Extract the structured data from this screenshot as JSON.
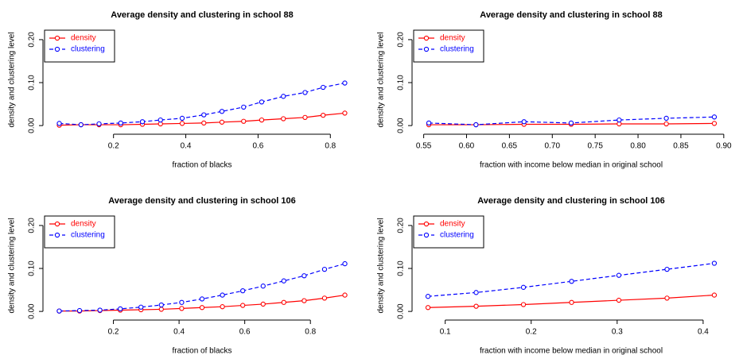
{
  "chart_data": [
    {
      "type": "line",
      "title": "Average density and clustering in school 88",
      "x_label": "fraction of blacks",
      "y_label": "density and clustering level",
      "x": [
        0.05,
        0.11,
        0.16,
        0.22,
        0.28,
        0.33,
        0.39,
        0.45,
        0.5,
        0.56,
        0.61,
        0.67,
        0.73,
        0.78,
        0.84
      ],
      "series": [
        {
          "name": "density",
          "color": "#ff0000",
          "linestyle": "solid",
          "values": [
            0.001,
            0.002,
            0.002,
            0.002,
            0.003,
            0.004,
            0.005,
            0.006,
            0.008,
            0.01,
            0.013,
            0.016,
            0.019,
            0.024,
            0.029
          ]
        },
        {
          "name": "clustering",
          "color": "#0000ff",
          "linestyle": "dashed",
          "values": [
            0.005,
            0.002,
            0.004,
            0.006,
            0.009,
            0.013,
            0.017,
            0.025,
            0.033,
            0.043,
            0.055,
            0.068,
            0.077,
            0.089,
            0.099
          ]
        }
      ],
      "xlim": [
        0.018,
        0.872
      ],
      "xticks": [
        0.2,
        0.4,
        0.6,
        0.8
      ],
      "ylim": [
        -0.009,
        0.222
      ],
      "yticks": [
        {
          "value": 0,
          "label": "0.00"
        },
        {
          "value": 0.1,
          "label": "0.10"
        },
        {
          "value": 0.2,
          "label": "0.20"
        }
      ],
      "legend": "topleft"
    },
    {
      "type": "line",
      "title": "Average density and clustering in school 88",
      "x_label": "fraction with income below median in original school",
      "y_label": "density and clustering level",
      "x": [
        0.556,
        0.611,
        0.667,
        0.722,
        0.778,
        0.833,
        0.889
      ],
      "series": [
        {
          "name": "density",
          "color": "#ff0000",
          "linestyle": "solid",
          "values": [
            0.002,
            0.002,
            0.003,
            0.003,
            0.004,
            0.004,
            0.005
          ]
        },
        {
          "name": "clustering",
          "color": "#0000ff",
          "linestyle": "dashed",
          "values": [
            0.006,
            0.002,
            0.009,
            0.006,
            0.013,
            0.017,
            0.02
          ]
        }
      ],
      "xlim": [
        0.542,
        0.902
      ],
      "xticks": [
        0.55,
        {
          "value": 0.6,
          "label": "0.60"
        },
        0.65,
        {
          "value": 0.7,
          "label": "0.70"
        },
        0.75,
        {
          "value": 0.8,
          "label": "0.80"
        },
        0.85,
        {
          "value": 0.9,
          "label": "0.90"
        }
      ],
      "ylim": [
        -0.009,
        0.222
      ],
      "yticks": [
        {
          "value": 0,
          "label": "0.00"
        },
        {
          "value": 0.1,
          "label": "0.10"
        },
        {
          "value": 0.2,
          "label": "0.20"
        }
      ],
      "legend": "topleft"
    },
    {
      "type": "line",
      "title": "Average density and clustering in school 106",
      "x_label": "fraction of blacks",
      "y_label": "density and clustering level",
      "x": [
        0.035,
        0.097,
        0.159,
        0.221,
        0.284,
        0.346,
        0.408,
        0.47,
        0.532,
        0.594,
        0.656,
        0.719,
        0.781,
        0.843,
        0.905
      ],
      "series": [
        {
          "name": "density",
          "color": "#ff0000",
          "linestyle": "solid",
          "values": [
            0.001,
            0.001,
            0.002,
            0.003,
            0.004,
            0.005,
            0.007,
            0.009,
            0.011,
            0.014,
            0.017,
            0.021,
            0.025,
            0.031,
            0.038
          ]
        },
        {
          "name": "clustering",
          "color": "#0000ff",
          "linestyle": "dashed",
          "values": [
            0.001,
            0.002,
            0.003,
            0.006,
            0.01,
            0.015,
            0.021,
            0.029,
            0.038,
            0.048,
            0.059,
            0.071,
            0.083,
            0.098,
            0.111
          ]
        }
      ],
      "xlim": [
        0.0,
        0.94
      ],
      "xticks": [
        0.2,
        0.4,
        0.6,
        0.8
      ],
      "ylim": [
        -0.009,
        0.222
      ],
      "yticks": [
        {
          "value": 0,
          "label": "0.00"
        },
        {
          "value": 0.1,
          "label": "0.10"
        },
        {
          "value": 0.2,
          "label": "0.20"
        }
      ],
      "legend": "topleft"
    },
    {
      "type": "line",
      "title": "Average density and clustering in school 106",
      "x_label": "fraction with income below median in original school",
      "y_label": "density and clustering level",
      "x": [
        0.08,
        0.136,
        0.191,
        0.247,
        0.302,
        0.358,
        0.413
      ],
      "series": [
        {
          "name": "density",
          "color": "#ff0000",
          "linestyle": "solid",
          "values": [
            0.009,
            0.012,
            0.016,
            0.021,
            0.026,
            0.031,
            0.038
          ]
        },
        {
          "name": "clustering",
          "color": "#0000ff",
          "linestyle": "dashed",
          "values": [
            0.035,
            0.044,
            0.056,
            0.07,
            0.084,
            0.098,
            0.112
          ]
        }
      ],
      "xlim": [
        0.067,
        0.426
      ],
      "xticks": [
        0.1,
        0.2,
        0.3,
        0.4
      ],
      "ylim": [
        -0.009,
        0.222
      ],
      "yticks": [
        {
          "value": 0,
          "label": "0.00"
        },
        {
          "value": 0.1,
          "label": "0.10"
        },
        {
          "value": 0.2,
          "label": "0.20"
        }
      ],
      "legend": "topleft"
    }
  ]
}
